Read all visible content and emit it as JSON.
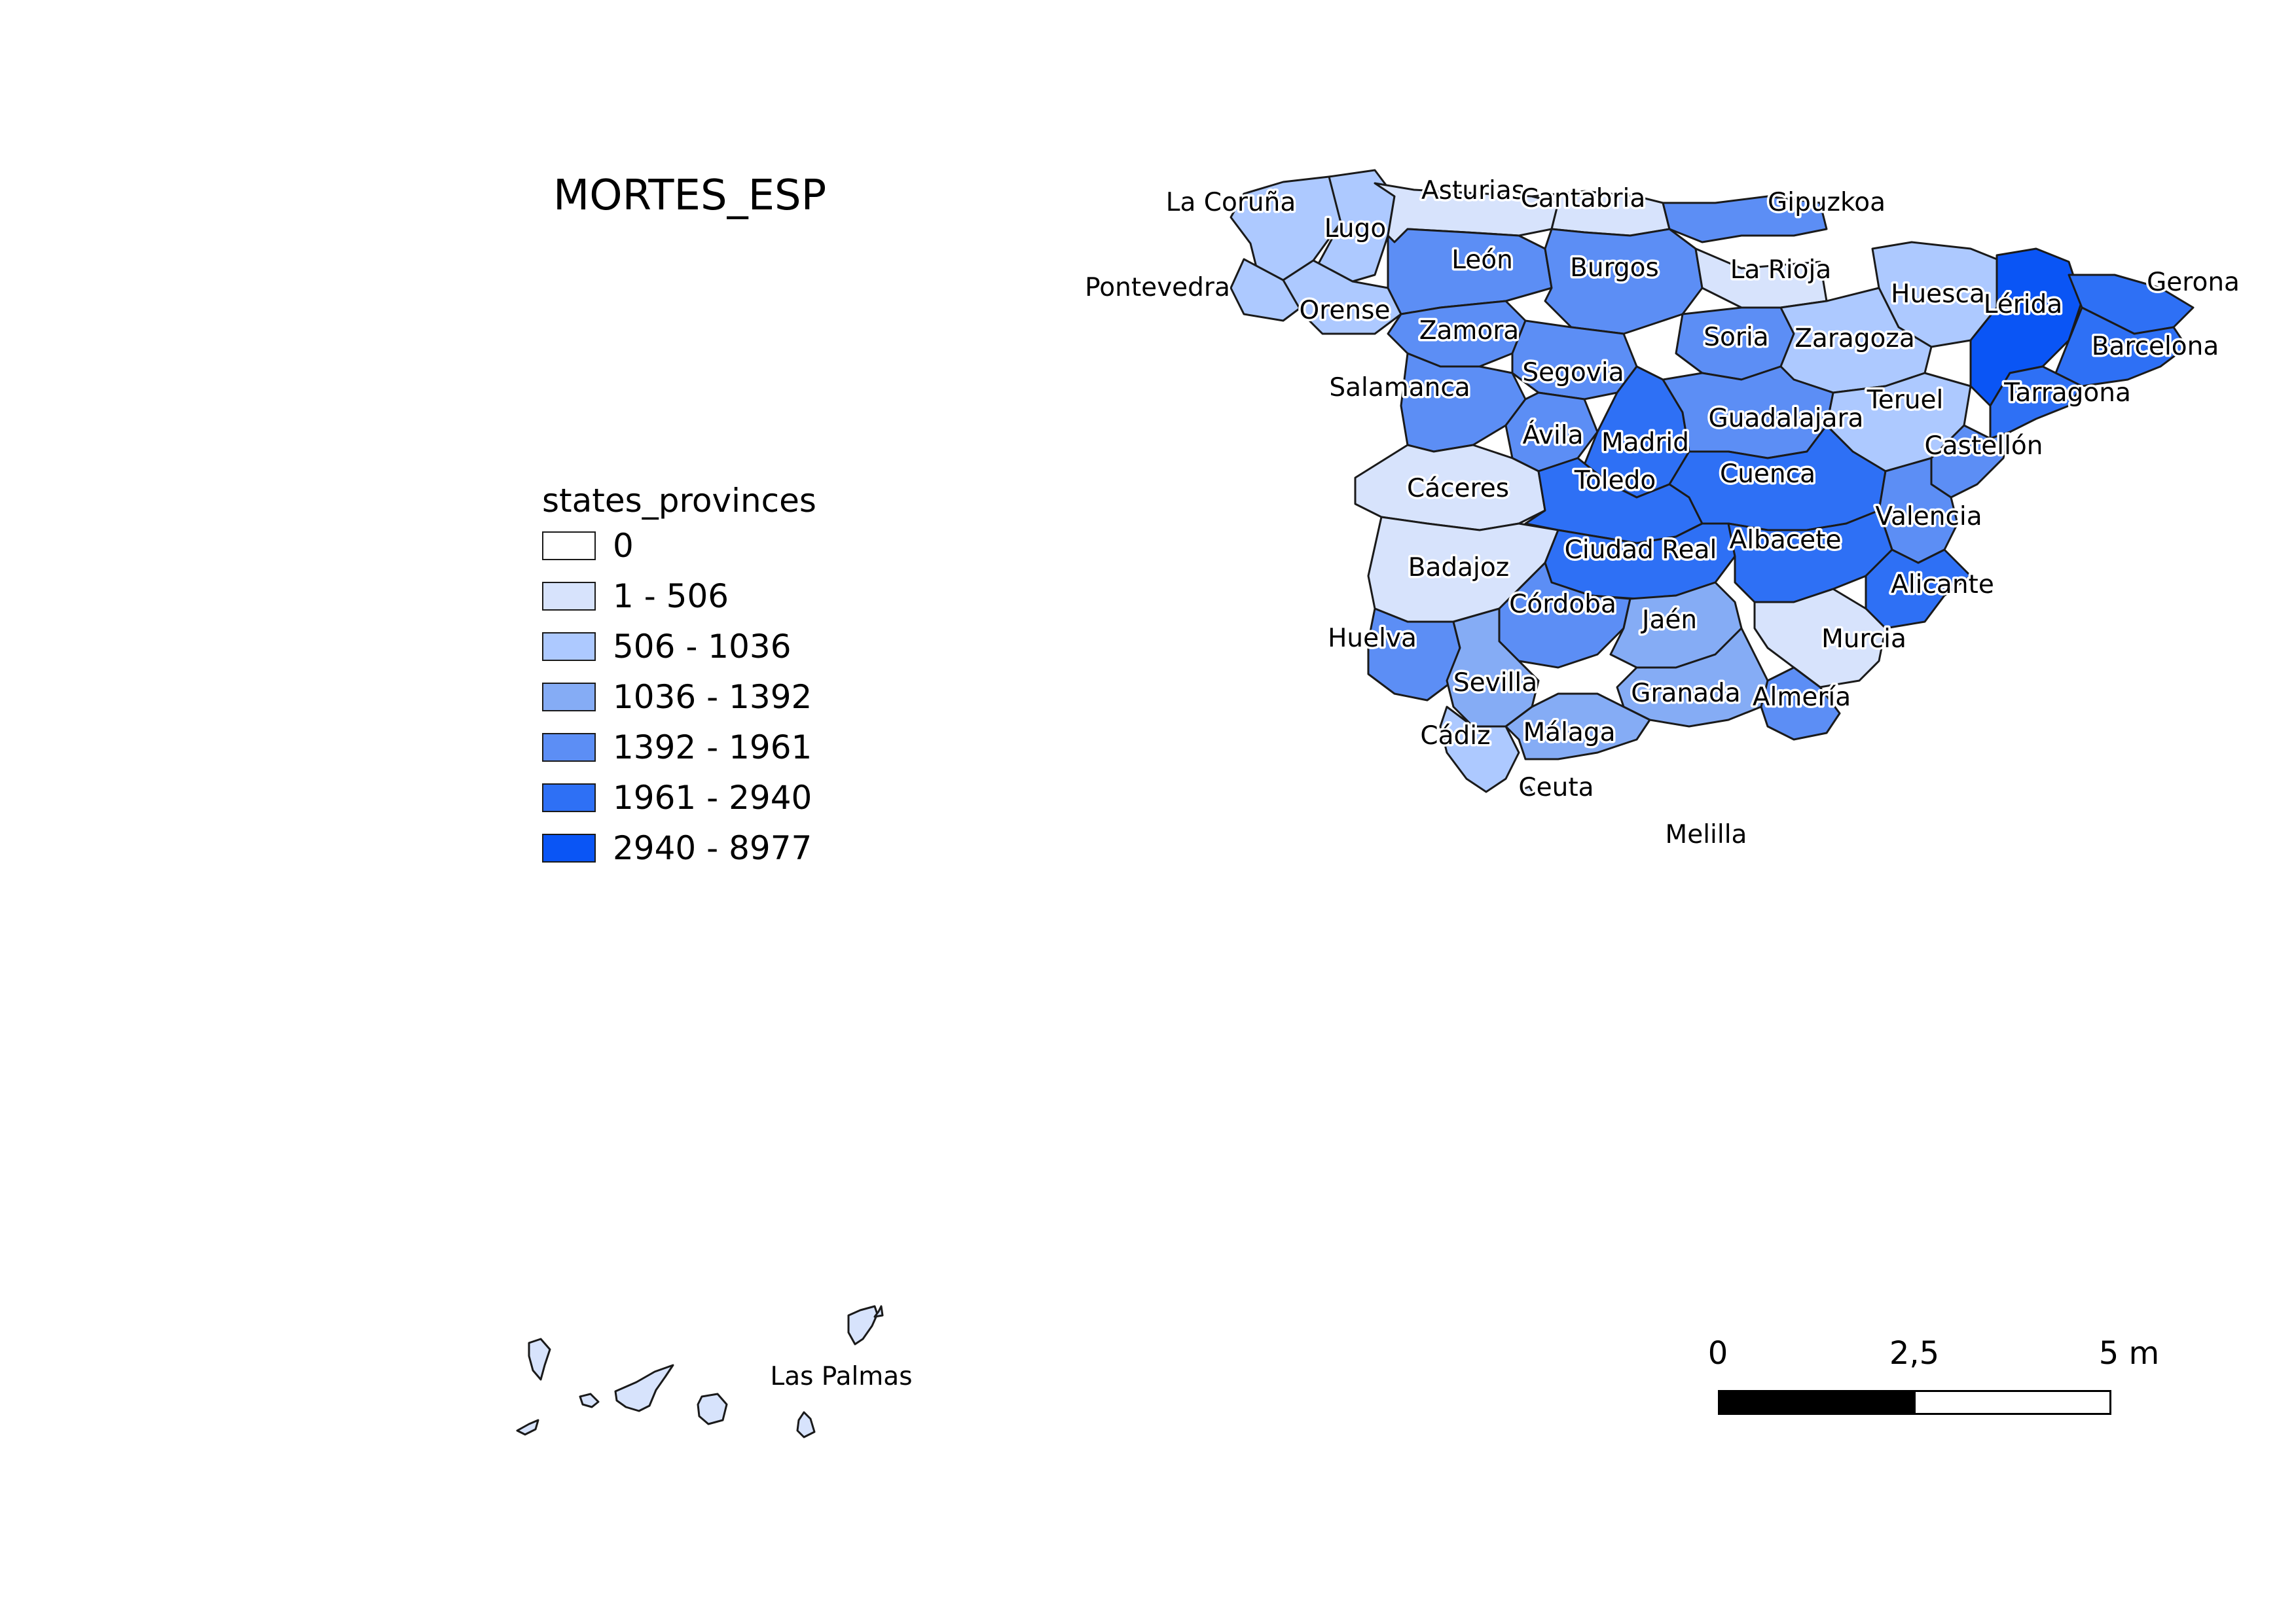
{
  "title": "MORTES_ESP",
  "legend": {
    "title": "states_provinces",
    "classes": [
      {
        "label": "0",
        "color": "#ffffff"
      },
      {
        "label": "1 - 506",
        "color": "#d7e3fc"
      },
      {
        "label": "506 - 1036",
        "color": "#adc9ff"
      },
      {
        "label": "1036 - 1392",
        "color": "#85acf5"
      },
      {
        "label": "1392 - 1961",
        "color": "#5c8ef5"
      },
      {
        "label": "1961 - 2940",
        "color": "#2e70f5"
      },
      {
        "label": "2940 - 8977",
        "color": "#0a55f5"
      }
    ]
  },
  "provinces": [
    {
      "name": "La Coruña",
      "class": 2
    },
    {
      "name": "Lugo",
      "class": 2
    },
    {
      "name": "Asturias",
      "class": 1
    },
    {
      "name": "Cantabria",
      "class": 1
    },
    {
      "name": "Gipuzkoa",
      "class": 4
    },
    {
      "name": "Pontevedra",
      "class": 2
    },
    {
      "name": "Orense",
      "class": 2
    },
    {
      "name": "León",
      "class": 4
    },
    {
      "name": "Burgos",
      "class": 4
    },
    {
      "name": "La Rioja",
      "class": 1
    },
    {
      "name": "Huesca",
      "class": 2
    },
    {
      "name": "Lérida",
      "class": 6
    },
    {
      "name": "Gerona",
      "class": 5
    },
    {
      "name": "Zamora",
      "class": 4
    },
    {
      "name": "Soria",
      "class": 4
    },
    {
      "name": "Zaragoza",
      "class": 2
    },
    {
      "name": "Barcelona",
      "class": 5
    },
    {
      "name": "Salamanca",
      "class": 4
    },
    {
      "name": "Segovia",
      "class": 4
    },
    {
      "name": "Teruel",
      "class": 2
    },
    {
      "name": "Tarragona",
      "class": 5
    },
    {
      "name": "Ávila",
      "class": 4
    },
    {
      "name": "Madrid",
      "class": 5
    },
    {
      "name": "Guadalajara",
      "class": 4
    },
    {
      "name": "Castellón",
      "class": 4
    },
    {
      "name": "Cáceres",
      "class": 1
    },
    {
      "name": "Toledo",
      "class": 5
    },
    {
      "name": "Cuenca",
      "class": 5
    },
    {
      "name": "Valencia",
      "class": 4
    },
    {
      "name": "Badajoz",
      "class": 1
    },
    {
      "name": "Ciudad Real",
      "class": 5
    },
    {
      "name": "Albacete",
      "class": 5
    },
    {
      "name": "Alicante",
      "class": 5
    },
    {
      "name": "Córdoba",
      "class": 4
    },
    {
      "name": "Jaén",
      "class": 3
    },
    {
      "name": "Murcia",
      "class": 1
    },
    {
      "name": "Huelva",
      "class": 4
    },
    {
      "name": "Sevilla",
      "class": 3
    },
    {
      "name": "Granada",
      "class": 3
    },
    {
      "name": "Almería",
      "class": 4
    },
    {
      "name": "Cádiz",
      "class": 2
    },
    {
      "name": "Málaga",
      "class": 3
    },
    {
      "name": "Ceuta",
      "class": 1
    },
    {
      "name": "Melilla",
      "class": 1
    },
    {
      "name": "Las Palmas",
      "class": 1
    }
  ],
  "scale_bar": {
    "ticks": [
      "0",
      "2,5",
      "5 m"
    ]
  }
}
